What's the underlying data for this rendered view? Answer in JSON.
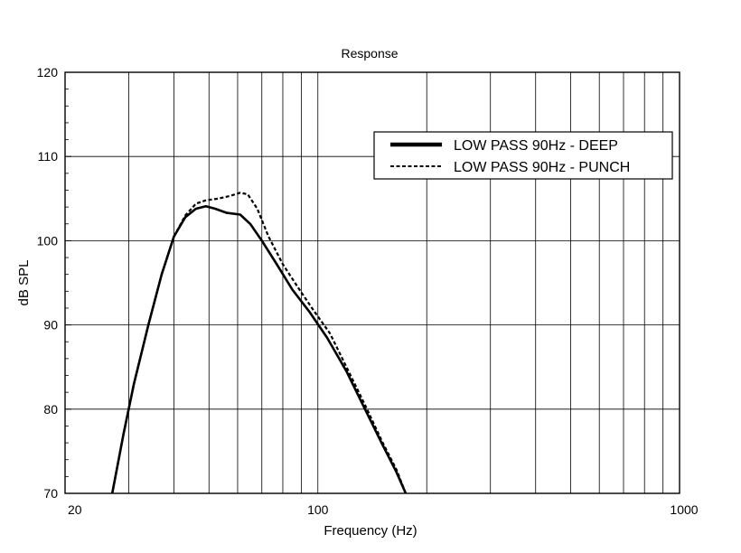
{
  "chart_data": {
    "type": "line",
    "title": "Response",
    "xlabel": "Frequency (Hz)",
    "ylabel": "dB SPL",
    "x_scale": "log",
    "xlim": [
      20,
      1000
    ],
    "ylim": [
      70,
      120
    ],
    "x_tick_labels": [
      "20",
      "100",
      "1000"
    ],
    "y_tick_labels": [
      "70",
      "80",
      "90",
      "100",
      "110",
      "120"
    ],
    "grid": true,
    "legend_position": "top-right",
    "series": [
      {
        "name": "LOW PASS 90Hz - DEEP",
        "line_style": "solid-thick",
        "color": "#000000",
        "points": [
          [
            27,
            70
          ],
          [
            29,
            77
          ],
          [
            31,
            83
          ],
          [
            34,
            90
          ],
          [
            37,
            96
          ],
          [
            40,
            100.5
          ],
          [
            43,
            102.8
          ],
          [
            46,
            103.8
          ],
          [
            49,
            104.1
          ],
          [
            52,
            103.8
          ],
          [
            56,
            103.3
          ],
          [
            61,
            103.1
          ],
          [
            65,
            102
          ],
          [
            70,
            100
          ],
          [
            77,
            97.2
          ],
          [
            85,
            94.2
          ],
          [
            95,
            91.5
          ],
          [
            106,
            88.5
          ],
          [
            120,
            84.5
          ],
          [
            135,
            80
          ],
          [
            150,
            76
          ],
          [
            165,
            72.5
          ],
          [
            175,
            70
          ]
        ]
      },
      {
        "name": "LOW PASS 90Hz - PUNCH",
        "line_style": "dashed",
        "color": "#000000",
        "points": [
          [
            27,
            70
          ],
          [
            29,
            77
          ],
          [
            31,
            83
          ],
          [
            34,
            90
          ],
          [
            37,
            96
          ],
          [
            40,
            100.5
          ],
          [
            43,
            103
          ],
          [
            46,
            104.4
          ],
          [
            49,
            104.8
          ],
          [
            53,
            105
          ],
          [
            57,
            105.3
          ],
          [
            61,
            105.7
          ],
          [
            64,
            105.5
          ],
          [
            68,
            103.8
          ],
          [
            73,
            100.5
          ],
          [
            80,
            97.2
          ],
          [
            88,
            94.5
          ],
          [
            97,
            91.8
          ],
          [
            108,
            89
          ],
          [
            120,
            85
          ],
          [
            135,
            80.5
          ],
          [
            150,
            76.3
          ],
          [
            165,
            72.8
          ],
          [
            175,
            70
          ]
        ]
      }
    ]
  }
}
